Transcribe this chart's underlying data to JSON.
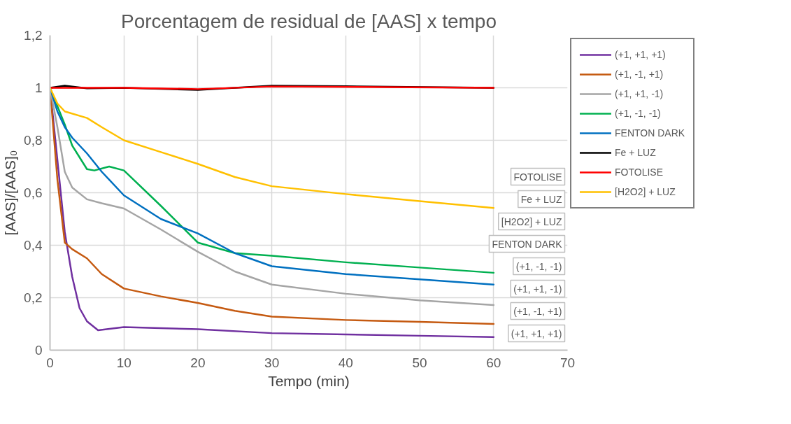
{
  "chart_data": {
    "type": "line",
    "title": "Porcentagem de residual de [AAS] x tempo",
    "xlabel": "Tempo (min)",
    "ylabel": "[AAS]/[AAS]₀",
    "xlim": [
      0,
      70
    ],
    "xticks": [
      0,
      10,
      20,
      30,
      40,
      50,
      60,
      70
    ],
    "ylim": [
      0,
      1.2
    ],
    "yticks": [
      {
        "value": 0,
        "label": "0"
      },
      {
        "value": 0.2,
        "label": "0,2"
      },
      {
        "value": 0.4,
        "label": "0,4"
      },
      {
        "value": 0.6,
        "label": "0,6"
      },
      {
        "value": 0.8,
        "label": "0,8"
      },
      {
        "value": 1,
        "label": "1"
      },
      {
        "value": 1.2,
        "label": "1,2"
      }
    ],
    "grid": true,
    "legend": "right",
    "marker": "none",
    "line_style": "solid",
    "series": [
      {
        "name": "(+1, +1, +1)",
        "color": "#7030a0",
        "x": [
          0,
          2,
          3,
          4,
          5,
          6.5,
          10,
          20,
          30,
          40,
          50,
          60
        ],
        "values": [
          1,
          0.45,
          0.28,
          0.16,
          0.11,
          0.076,
          0.088,
          0.08,
          0.065,
          0.06,
          0.055,
          0.05
        ]
      },
      {
        "name": "(+1, -1, +1)",
        "color": "#c55a11",
        "x": [
          0,
          1,
          2,
          3,
          5,
          7,
          10,
          15,
          20,
          25,
          30,
          40,
          50,
          60
        ],
        "values": [
          1,
          0.65,
          0.41,
          0.385,
          0.35,
          0.29,
          0.235,
          0.205,
          0.18,
          0.15,
          0.128,
          0.115,
          0.108,
          0.1
        ]
      },
      {
        "name": "(+1, +1, -1)",
        "color": "#a5a5a5",
        "x": [
          0,
          1,
          2,
          3,
          5,
          7,
          10,
          15,
          20,
          25,
          30,
          40,
          50,
          60
        ],
        "values": [
          1,
          0.85,
          0.68,
          0.62,
          0.575,
          0.56,
          0.54,
          0.46,
          0.375,
          0.3,
          0.25,
          0.215,
          0.19,
          0.172
        ]
      },
      {
        "name": "(+1, -1, -1)",
        "color": "#00b050",
        "x": [
          0,
          1,
          2,
          3,
          5,
          6,
          8,
          10,
          15,
          20,
          25,
          30,
          40,
          50,
          60
        ],
        "values": [
          1,
          0.93,
          0.86,
          0.78,
          0.69,
          0.685,
          0.7,
          0.685,
          0.55,
          0.41,
          0.37,
          0.36,
          0.335,
          0.315,
          0.295
        ]
      },
      {
        "name": "FENTON DARK",
        "color": "#0070c0",
        "x": [
          0,
          1,
          2,
          3,
          5,
          7,
          10,
          15,
          20,
          25,
          30,
          40,
          50,
          60
        ],
        "values": [
          1,
          0.91,
          0.85,
          0.81,
          0.75,
          0.68,
          0.59,
          0.5,
          0.445,
          0.37,
          0.32,
          0.29,
          0.27,
          0.25
        ]
      },
      {
        "name": "Fe + LUZ",
        "color": "#000000",
        "x": [
          0,
          2,
          5,
          10,
          20,
          30,
          40,
          60
        ],
        "values": [
          1,
          1.008,
          0.998,
          1.0,
          0.992,
          1.008,
          1.006,
          1.0
        ]
      },
      {
        "name": "FOTOLISE",
        "color": "#ff0000",
        "x": [
          0,
          5,
          10,
          20,
          30,
          60
        ],
        "values": [
          1,
          1.0,
          1.0,
          0.995,
          1.005,
          1.0
        ]
      },
      {
        "name": "[H2O2] + LUZ",
        "color": "#ffc000",
        "x": [
          0,
          1,
          2,
          5,
          7,
          10,
          15,
          20,
          25,
          30,
          40,
          50,
          60
        ],
        "values": [
          1,
          0.94,
          0.91,
          0.885,
          0.85,
          0.8,
          0.755,
          0.71,
          0.66,
          0.625,
          0.595,
          0.568,
          0.542
        ]
      }
    ],
    "annotations": [
      "FOTOLISE",
      "Fe + LUZ",
      "[H2O2] + LUZ",
      "FENTON DARK",
      "(+1, -1, -1)",
      "(+1, +1, -1)",
      "(+1, -1, +1)",
      "(+1, +1, +1)"
    ]
  }
}
